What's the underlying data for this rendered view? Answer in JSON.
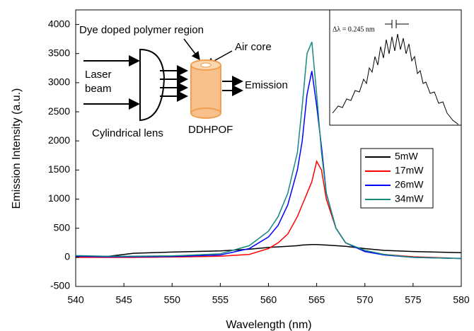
{
  "chart_data": {
    "type": "line",
    "xlabel": "Wavelength (nm)",
    "ylabel": "Emission Intensity (a.u.)",
    "xlim": [
      540,
      580
    ],
    "ylim": [
      -500,
      4250
    ],
    "xticks": [
      540,
      545,
      550,
      555,
      560,
      565,
      570,
      575,
      580
    ],
    "yticks": [
      -500,
      0,
      500,
      1000,
      1500,
      2000,
      2500,
      3000,
      3500,
      4000
    ],
    "x": [
      540,
      543,
      546,
      550,
      555,
      558,
      560,
      561,
      562,
      563,
      563.5,
      564,
      564.5,
      565,
      565.5,
      566,
      567,
      568,
      570,
      572,
      575,
      580
    ],
    "series": [
      {
        "name": "5mW",
        "color": "#000000",
        "values": [
          0,
          10,
          70,
          90,
          110,
          140,
          170,
          180,
          190,
          200,
          210,
          215,
          220,
          220,
          215,
          210,
          200,
          190,
          150,
          120,
          100,
          80
        ]
      },
      {
        "name": "17mW",
        "color": "#ff0000",
        "values": [
          0,
          0,
          0,
          5,
          20,
          50,
          150,
          250,
          400,
          700,
          900,
          1100,
          1300,
          1650,
          1500,
          1000,
          500,
          250,
          100,
          50,
          10,
          -20
        ]
      },
      {
        "name": "26mW",
        "color": "#0000ff",
        "values": [
          20,
          10,
          10,
          15,
          40,
          150,
          350,
          550,
          900,
          1500,
          2000,
          2800,
          3200,
          2600,
          1900,
          1100,
          500,
          250,
          100,
          40,
          0,
          -20
        ]
      },
      {
        "name": "34mW",
        "color": "#168a7c",
        "values": [
          30,
          20,
          20,
          25,
          60,
          200,
          450,
          700,
          1100,
          1800,
          2600,
          3500,
          3700,
          2800,
          1800,
          1100,
          500,
          250,
          120,
          50,
          0,
          -20
        ]
      }
    ],
    "legend": "right",
    "annotations": [
      "Dye doped polymer region",
      "Air core",
      "Laser",
      "beam",
      "Emission",
      "Cylindrical lens",
      "DDHPOF",
      "Δλ = 0.245 nm"
    ]
  }
}
